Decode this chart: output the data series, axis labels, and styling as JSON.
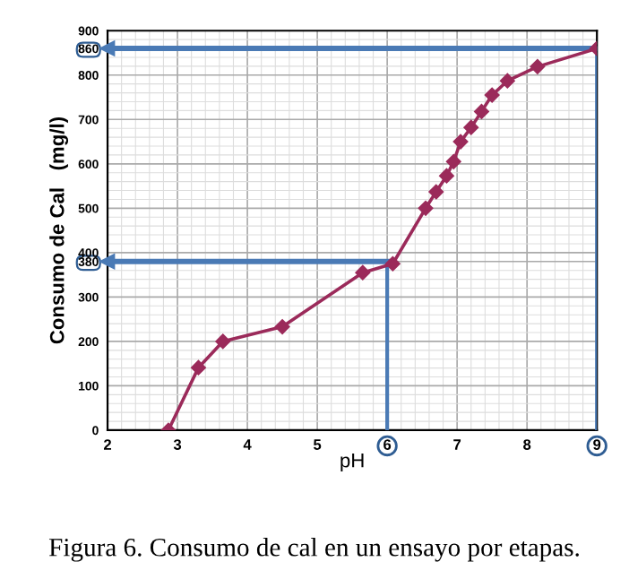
{
  "chart_data": {
    "type": "line",
    "xlabel": "pH",
    "ylabel": "Consumo de Cal   (mg/l)",
    "x": [
      2.87,
      3.3,
      3.65,
      4.5,
      5.65,
      6.08,
      6.55,
      6.7,
      6.85,
      6.95,
      7.05,
      7.2,
      7.35,
      7.5,
      7.72,
      8.15,
      9
    ],
    "series": [
      {
        "color": "#9b2a5a",
        "values": [
          0,
          141,
          200,
          233,
          355,
          375,
          500,
          537,
          573,
          605,
          650,
          682,
          718,
          755,
          787,
          819,
          860
        ]
      }
    ],
    "marker": "diamond",
    "line_style": "solid",
    "xlim": [
      2,
      9
    ],
    "ylim": [
      0,
      900
    ],
    "xticks": [
      2,
      3,
      4,
      5,
      6,
      7,
      8,
      9
    ],
    "yticks": [
      0,
      100,
      200,
      300,
      380,
      400,
      500,
      600,
      700,
      800,
      860,
      900
    ],
    "grid": true,
    "ref_lines": [
      {
        "axis": "y",
        "value": 380,
        "color": "#4a7ab5"
      },
      {
        "axis": "y",
        "value": 860,
        "color": "#4a7ab5"
      },
      {
        "axis": "x",
        "value": 6,
        "color": "#4a7ab5"
      },
      {
        "axis": "x",
        "value": 9,
        "color": "#4a7ab5"
      }
    ],
    "annotations": [
      "Figura 6. Consumo de cal en un ensayo por etapas."
    ]
  }
}
